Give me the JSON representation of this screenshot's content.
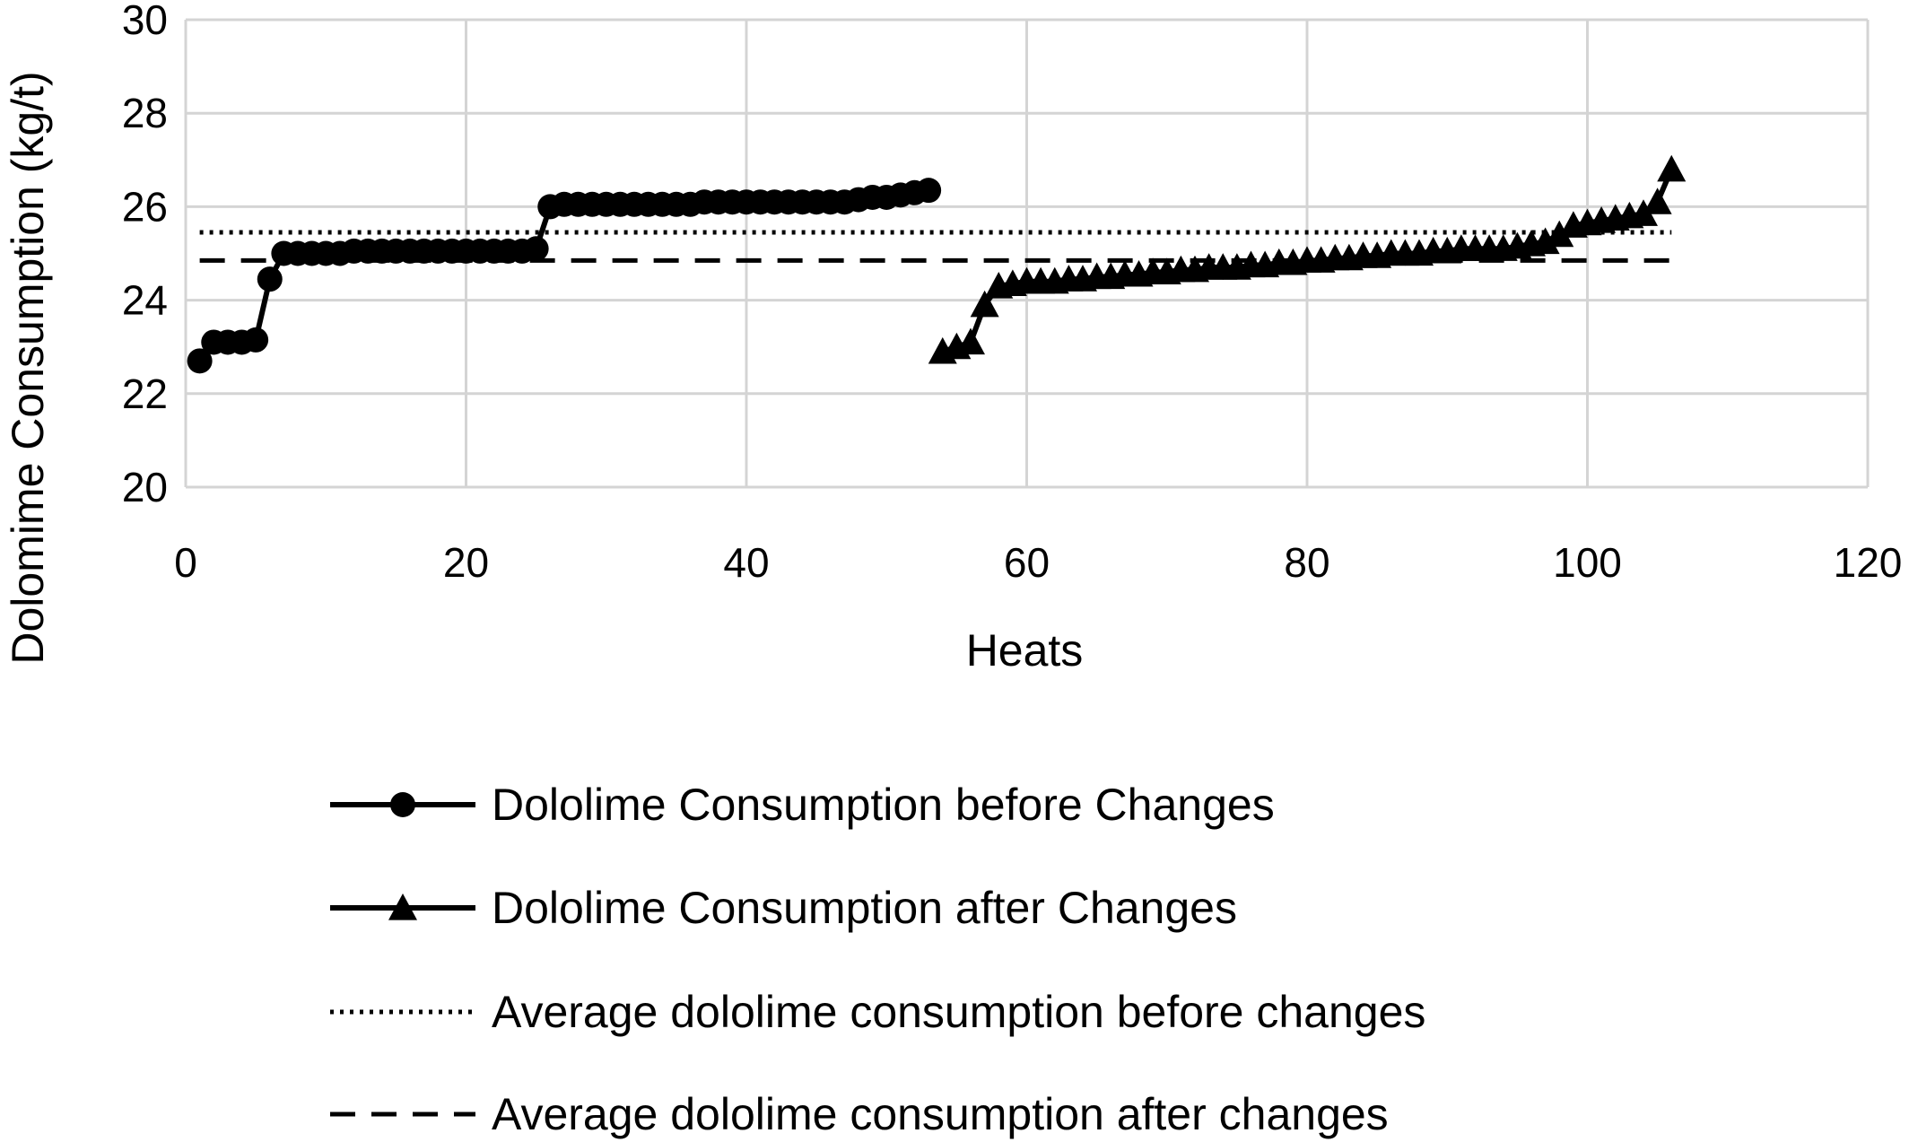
{
  "chart_data": {
    "type": "line",
    "xlabel": "Heats",
    "ylabel": "Dolomime Consumption (kg/t)",
    "xlim": [
      0,
      120
    ],
    "ylim": [
      20,
      30
    ],
    "xticks": [
      0,
      20,
      40,
      60,
      80,
      100,
      120
    ],
    "yticks": [
      20,
      22,
      24,
      26,
      28,
      30
    ],
    "grid": true,
    "legend": "bottom",
    "series": [
      {
        "name": "Dololime Consumption before Changes",
        "marker": "circle",
        "style": "solid",
        "x": [
          1,
          2,
          3,
          4,
          5,
          6,
          7,
          8,
          9,
          10,
          11,
          12,
          13,
          14,
          15,
          16,
          17,
          18,
          19,
          20,
          21,
          22,
          23,
          24,
          25,
          26,
          27,
          28,
          29,
          30,
          31,
          32,
          33,
          34,
          35,
          36,
          37,
          38,
          39,
          40,
          41,
          42,
          43,
          44,
          45,
          46,
          47,
          48,
          49,
          50,
          51,
          52,
          53
        ],
        "y": [
          22.7,
          23.1,
          23.1,
          23.1,
          23.15,
          24.45,
          25.0,
          25.0,
          25.0,
          25.0,
          25.0,
          25.05,
          25.05,
          25.05,
          25.05,
          25.05,
          25.05,
          25.05,
          25.05,
          25.05,
          25.05,
          25.05,
          25.05,
          25.05,
          25.1,
          26.0,
          26.05,
          26.05,
          26.05,
          26.05,
          26.05,
          26.05,
          26.05,
          26.05,
          26.05,
          26.05,
          26.1,
          26.1,
          26.1,
          26.1,
          26.1,
          26.1,
          26.1,
          26.1,
          26.1,
          26.1,
          26.1,
          26.15,
          26.2,
          26.2,
          26.25,
          26.3,
          26.35
        ]
      },
      {
        "name": "Dololime Consumption after Changes",
        "marker": "triangle",
        "style": "solid",
        "x": [
          54,
          55,
          56,
          57,
          58,
          59,
          60,
          61,
          62,
          63,
          64,
          65,
          66,
          67,
          68,
          69,
          70,
          71,
          72,
          73,
          74,
          75,
          76,
          77,
          78,
          79,
          80,
          81,
          82,
          83,
          84,
          85,
          86,
          87,
          88,
          89,
          90,
          91,
          92,
          93,
          94,
          95,
          96,
          97,
          98,
          99,
          100,
          101,
          102,
          103,
          104,
          105,
          106
        ],
        "y": [
          22.9,
          23.0,
          23.1,
          23.9,
          24.3,
          24.35,
          24.4,
          24.4,
          24.4,
          24.45,
          24.45,
          24.5,
          24.5,
          24.55,
          24.55,
          24.6,
          24.6,
          24.65,
          24.65,
          24.7,
          24.7,
          24.7,
          24.75,
          24.75,
          24.8,
          24.8,
          24.85,
          24.85,
          24.9,
          24.9,
          24.95,
          24.95,
          25.0,
          25.0,
          25.0,
          25.05,
          25.05,
          25.1,
          25.1,
          25.1,
          25.1,
          25.15,
          25.2,
          25.25,
          25.4,
          25.6,
          25.65,
          25.7,
          25.75,
          25.8,
          25.85,
          26.1,
          26.8
        ]
      },
      {
        "name": "Average dololime consumption before changes",
        "marker": "none",
        "style": "dotted",
        "x": [
          1,
          106
        ],
        "y": [
          25.45,
          25.45
        ]
      },
      {
        "name": "Average dololime consumption after changes",
        "marker": "none",
        "style": "dashed",
        "x": [
          1,
          106
        ],
        "y": [
          24.85,
          24.85
        ]
      }
    ]
  }
}
